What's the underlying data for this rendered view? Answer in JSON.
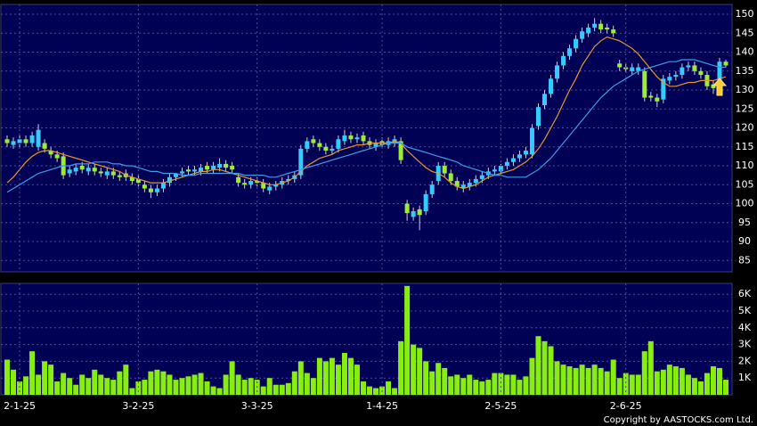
{
  "chart_data": [
    {
      "type": "candlestick",
      "open": [
        117,
        115.5,
        116,
        117,
        116,
        115,
        116,
        114,
        113,
        112.5,
        108,
        108.5,
        110,
        108.5,
        109.5,
        108.5,
        107.5,
        108.5,
        107.5,
        108,
        107,
        106.5,
        105,
        104,
        103,
        104,
        105.5,
        107,
        108,
        109,
        108.5,
        108.5,
        110,
        109,
        109.5,
        110.5,
        110,
        107,
        105.5,
        105,
        106,
        105.5,
        103.5,
        104.5,
        105,
        106,
        106.5,
        107.5,
        114.5,
        117,
        116,
        115,
        114,
        114.5,
        116.5,
        118,
        117,
        118,
        116.5,
        115,
        116.5,
        115.5,
        116,
        116.5,
        100,
        96.5,
        98.5,
        98,
        102.5,
        106,
        110,
        108,
        106,
        104,
        104.5,
        105.5,
        106.5,
        107.5,
        108.5,
        108.5,
        110,
        111,
        112,
        113,
        113,
        120.5,
        126,
        129,
        133,
        136.5,
        139,
        141,
        143.5,
        145,
        146.5,
        147.5,
        146.5,
        146,
        137,
        136,
        135,
        135,
        135,
        128.5,
        128,
        127.5,
        132.5,
        133.5,
        134,
        136,
        136.5,
        135,
        134,
        131.5,
        131,
        137.5
      ],
      "high": [
        118,
        117.5,
        118,
        118,
        119,
        121,
        117,
        115,
        114,
        113.5,
        110,
        110.5,
        111,
        110.5,
        110.5,
        109.5,
        109.5,
        109.5,
        108.5,
        109,
        108,
        107.5,
        106,
        105,
        105,
        106.5,
        108,
        108,
        109.5,
        110,
        110,
        110.5,
        111,
        111,
        112,
        111.5,
        111,
        108,
        106.5,
        107,
        107,
        106.5,
        105.5,
        106,
        107,
        107.5,
        108.5,
        115.5,
        117.5,
        118,
        117,
        116,
        115.5,
        118,
        119.5,
        119,
        118.5,
        119,
        117.5,
        117,
        117.5,
        117.5,
        118,
        117.5,
        101,
        99,
        99.5,
        103.5,
        106,
        111,
        111,
        109,
        107,
        106,
        106.5,
        107.5,
        108.5,
        109.5,
        110,
        110.5,
        112,
        113,
        114,
        115,
        121,
        126.5,
        130,
        134,
        137.5,
        140,
        142,
        144.5,
        146.5,
        147.5,
        149,
        148.5,
        147.5,
        147,
        138,
        137,
        137,
        137,
        136,
        129.5,
        129,
        134,
        134.5,
        135,
        137,
        137.5,
        137.5,
        136,
        135,
        132.5,
        138.5,
        138
      ],
      "low": [
        115,
        114.5,
        115,
        115,
        115,
        114,
        113.5,
        112,
        111,
        106.5,
        107,
        107.5,
        108,
        107.5,
        107.5,
        107,
        106.5,
        106.5,
        106,
        106,
        105,
        104.5,
        103,
        101.5,
        102,
        103,
        104.5,
        106,
        107,
        107.5,
        107.5,
        107.5,
        108,
        108,
        108.5,
        108.5,
        108,
        104.5,
        104,
        104,
        104.5,
        103,
        102.5,
        103.5,
        104,
        105,
        105.5,
        106.5,
        113.5,
        115,
        114,
        113,
        113,
        113.5,
        115.5,
        116,
        116,
        115.5,
        114.5,
        114,
        114.5,
        114.5,
        115,
        110.5,
        95.5,
        95.5,
        93,
        97,
        101.5,
        105,
        107,
        105,
        103.5,
        103,
        103.5,
        104.5,
        105.5,
        106.5,
        107.5,
        107.5,
        109,
        110,
        111,
        112,
        112,
        119.5,
        125,
        128,
        132,
        135.5,
        138,
        140,
        142.5,
        144,
        145.5,
        145,
        145,
        144,
        135,
        134.5,
        134,
        134,
        127,
        127,
        125.5,
        126.5,
        131.5,
        132.5,
        133,
        135,
        134,
        133,
        130,
        129,
        130,
        136
      ],
      "close": [
        116,
        116.5,
        117,
        116,
        118,
        119.5,
        114.5,
        113,
        112,
        107.5,
        109,
        109.5,
        109,
        109.5,
        108.5,
        108,
        108.5,
        107.5,
        107,
        107,
        106,
        105.5,
        104,
        103,
        104,
        105.5,
        107,
        108,
        108.5,
        108.5,
        109,
        109.5,
        109,
        110,
        110.5,
        109.5,
        109,
        105.5,
        105,
        106,
        105.5,
        104,
        104.5,
        105,
        106,
        106.5,
        107.5,
        114.5,
        116.5,
        116,
        115,
        114,
        114.5,
        117,
        118,
        117,
        117.5,
        116.5,
        115.5,
        116,
        115.5,
        116.5,
        117,
        111.5,
        97.5,
        98,
        97,
        102.5,
        105,
        110,
        108,
        106,
        104.5,
        105,
        105.5,
        106.5,
        107.5,
        108.5,
        109,
        110,
        111,
        112,
        113,
        114,
        120,
        125.5,
        129,
        133,
        136.5,
        139,
        141,
        143.5,
        145.5,
        146.5,
        147.5,
        146,
        146,
        145,
        136,
        135.5,
        136,
        136,
        128,
        128,
        127,
        133,
        133.5,
        134,
        136,
        136.5,
        135,
        134,
        131,
        130.5,
        137.5,
        136.5
      ],
      "up_color": "#33ccff",
      "down_color": "#99ee33",
      "overlays": [
        {
          "color": "#e8962e",
          "values": [
            105.5,
            107,
            109,
            111,
            112.5,
            113.5,
            114,
            114,
            113.5,
            113,
            112.5,
            112,
            111.5,
            111,
            110.5,
            110,
            109.5,
            109,
            108.5,
            107.5,
            107,
            106.5,
            106,
            105.5,
            105.5,
            105.5,
            106,
            106.5,
            107,
            107.5,
            108,
            108.5,
            108.5,
            109,
            109,
            108.5,
            108,
            107.5,
            107,
            106.5,
            106,
            105.5,
            105,
            105,
            105.5,
            106,
            107,
            108.5,
            110,
            111,
            112,
            112.5,
            113,
            114,
            114.5,
            115,
            115.5,
            115.5,
            116,
            116,
            116,
            116,
            116.5,
            116,
            114,
            112.5,
            111,
            109.5,
            108.5,
            108,
            107,
            105.5,
            104.5,
            104,
            104.5,
            105,
            106,
            107,
            107.5,
            108,
            108.5,
            109,
            110,
            111,
            112.5,
            114.5,
            117,
            120,
            123,
            126.5,
            130,
            133,
            136.5,
            139,
            141.5,
            143,
            144,
            143.5,
            143,
            142,
            141,
            139.5,
            137.5,
            135.5,
            133.5,
            132,
            131,
            131,
            131.5,
            132,
            132,
            132.5,
            132.5,
            132.5,
            133,
            133.5
          ]
        },
        {
          "color": "#3a9ee8",
          "values": [
            103,
            104,
            105,
            106,
            107,
            108,
            108.5,
            109,
            109.5,
            110,
            110,
            110.5,
            110.5,
            110.5,
            111,
            111,
            111,
            110.5,
            110.5,
            110,
            110,
            109.5,
            109,
            108.5,
            108.5,
            108,
            108,
            108,
            107.5,
            107.5,
            107.5,
            108,
            108,
            108,
            108,
            108,
            108,
            108,
            107.5,
            107.5,
            107.5,
            107.5,
            107,
            107,
            107.5,
            108,
            108.5,
            109,
            109.5,
            110,
            110.5,
            111,
            111.5,
            112,
            112.5,
            113,
            113.5,
            114,
            114.5,
            115,
            115.5,
            116,
            116,
            116,
            115,
            114.5,
            114,
            113.5,
            113,
            112.5,
            112,
            111.5,
            111,
            110,
            109.5,
            109,
            108.5,
            108,
            107.5,
            107.5,
            107,
            107,
            107,
            107,
            108,
            109,
            110.5,
            112,
            114,
            116,
            118,
            120,
            122,
            124,
            126,
            128,
            129.5,
            131,
            132,
            133,
            134,
            135,
            135.5,
            136,
            136.5,
            137,
            137.5,
            137.5,
            138,
            138,
            138,
            137.5,
            137,
            136.5,
            136,
            136
          ]
        }
      ],
      "ylim": [
        82,
        152.6
      ],
      "yticks": [
        85,
        90,
        95,
        100,
        105,
        110,
        115,
        120,
        125,
        130,
        135,
        140,
        145,
        150
      ],
      "grid": true
    },
    {
      "type": "bar",
      "categories": [
        null,
        null,
        "2-1-25",
        null,
        null,
        null,
        null,
        null,
        null,
        null,
        null,
        null,
        null,
        null,
        null,
        null,
        null,
        null,
        null,
        null,
        null,
        "3-2-25",
        null,
        null,
        null,
        null,
        null,
        null,
        null,
        null,
        null,
        null,
        null,
        null,
        null,
        null,
        null,
        null,
        null,
        null,
        "3-3-25",
        null,
        null,
        null,
        null,
        null,
        null,
        null,
        null,
        null,
        null,
        null,
        null,
        null,
        null,
        null,
        null,
        null,
        null,
        null,
        "1-4-25",
        null,
        null,
        null,
        null,
        null,
        null,
        null,
        null,
        null,
        null,
        null,
        null,
        null,
        null,
        null,
        null,
        null,
        null,
        "2-5-25",
        null,
        null,
        null,
        null,
        null,
        null,
        null,
        null,
        null,
        null,
        null,
        null,
        null,
        null,
        null,
        null,
        null,
        null,
        null,
        "2-6-25",
        null,
        null,
        null,
        null,
        null,
        null,
        null,
        null,
        null,
        null,
        null,
        null,
        null,
        null,
        null,
        null
      ],
      "values": [
        2100,
        1500,
        800,
        1100,
        2600,
        1200,
        2000,
        1800,
        800,
        1300,
        1000,
        600,
        1200,
        1000,
        1500,
        1200,
        1000,
        900,
        1400,
        1800,
        400,
        800,
        900,
        1400,
        1500,
        1400,
        1200,
        900,
        1000,
        1100,
        1200,
        1300,
        800,
        500,
        400,
        1200,
        2000,
        1200,
        900,
        1000,
        900,
        500,
        1000,
        600,
        600,
        700,
        1400,
        2000,
        1300,
        1000,
        2200,
        2000,
        2200,
        1800,
        2500,
        2200,
        1800,
        800,
        500,
        400,
        500,
        800,
        400,
        3200,
        6500,
        3000,
        2800,
        2000,
        1400,
        1900,
        1600,
        1100,
        1200,
        1000,
        1200,
        900,
        800,
        900,
        1300,
        1300,
        1200,
        1200,
        900,
        1100,
        2200,
        3500,
        3200,
        2900,
        2000,
        1800,
        1700,
        1600,
        1800,
        1600,
        1800,
        1600,
        1400,
        2100,
        1000,
        1300,
        1200,
        1200,
        2600,
        3200,
        1400,
        1500,
        1800,
        1700,
        1600,
        1200,
        1000,
        800,
        1300,
        1700,
        1600,
        900
      ],
      "color": "#88ee11",
      "ylim": [
        0,
        6650
      ],
      "yticks": [
        {
          "value": 1000,
          "label": "1K"
        },
        {
          "value": 2000,
          "label": "2K"
        },
        {
          "value": 3000,
          "label": "3K"
        },
        {
          "value": 4000,
          "label": "4K"
        },
        {
          "value": 5000,
          "label": "5K"
        },
        {
          "value": 6000,
          "label": "6K"
        }
      ],
      "grid": true
    }
  ],
  "footer": "Copyright by AASTOCKS.com Ltd."
}
